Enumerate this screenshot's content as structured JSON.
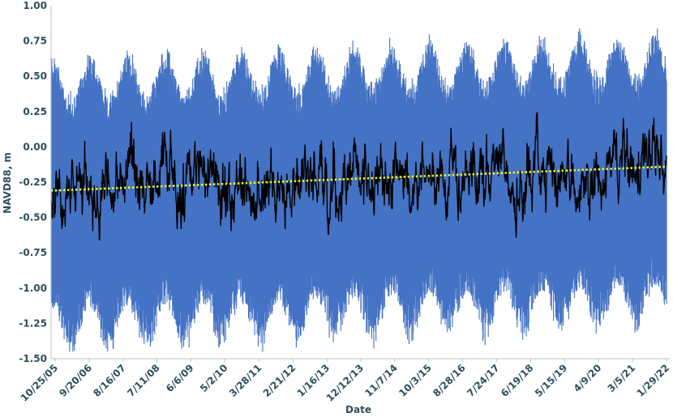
{
  "chart_data": {
    "type": "line",
    "title": "",
    "xlabel": "Date",
    "ylabel": "NAVD88, m",
    "ylim": [
      -1.5,
      1.0
    ],
    "y_ticks": [
      "1.00",
      "0.75",
      "0.50",
      "0.25",
      "0.00",
      "-0.25",
      "-0.50",
      "-0.75",
      "-1.00",
      "-1.25",
      "-1.50"
    ],
    "x_ticks": [
      "10/25/05",
      "9/20/06",
      "8/16/07",
      "7/11/08",
      "6/6/09",
      "5/2/10",
      "3/28/11",
      "2/21/12",
      "1/16/13",
      "12/12/13",
      "11/7/14",
      "10/3/15",
      "8/28/16",
      "7/24/17",
      "6/19/18",
      "5/15/19",
      "4/9/20",
      "3/5/21",
      "1/29/22"
    ],
    "grid": false,
    "legend": "none",
    "colors": {
      "tide": "#4472c4",
      "mean": "#000000",
      "trend": "#f2f01e",
      "axis": "#bfbfbf",
      "text": "#2d4f5c"
    },
    "series": [
      {
        "style": "observed-tide-range",
        "color": "#4472c4",
        "x": [
          "2005-10-25",
          "2022-03-01"
        ],
        "approx_high_envelope": [
          0.2,
          1.0
        ],
        "approx_low_envelope": [
          -1.45,
          -0.5
        ]
      },
      {
        "style": "daily-mean",
        "color": "#000000",
        "x": [
          "2005-10-25",
          "2022-03-01"
        ],
        "approx_range": [
          -0.66,
          0.26
        ]
      },
      {
        "style": "linear-trend",
        "color": "#f2f01e",
        "dashed": true,
        "x": [
          "2005-10-25",
          "2022-03-01"
        ],
        "y": [
          -0.31,
          -0.14
        ]
      }
    ]
  }
}
